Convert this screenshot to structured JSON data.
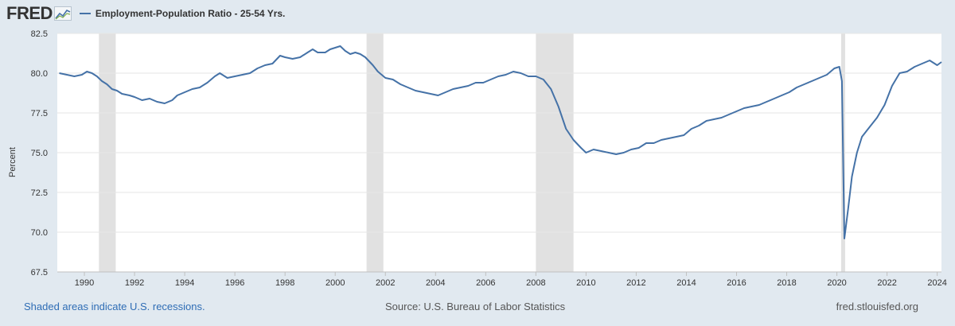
{
  "header": {
    "logo_text": "FRED",
    "logo_icon": "chart-line-icon",
    "legend_label": "Employment-Population Ratio - 25-54 Yrs.",
    "series_color": "#4572a7"
  },
  "footer": {
    "recession_note": "Shaded areas indicate U.S. recessions.",
    "source": "Source: U.S. Bureau of Labor Statistics",
    "site": "fred.stlouisfed.org"
  },
  "chart_data": {
    "type": "line",
    "title": "",
    "xlabel": "",
    "ylabel": "Percent",
    "xlim": [
      1988.92,
      2024.17
    ],
    "ylim": [
      67.5,
      82.5
    ],
    "yticks": [
      "67.5",
      "70.0",
      "72.5",
      "75.0",
      "77.5",
      "80.0",
      "82.5"
    ],
    "xticks": [
      "1990",
      "1992",
      "1994",
      "1996",
      "1998",
      "2000",
      "2002",
      "2004",
      "2006",
      "2008",
      "2010",
      "2012",
      "2014",
      "2016",
      "2018",
      "2020",
      "2022",
      "2024"
    ],
    "grid": true,
    "legend": "top-left",
    "recessions": [
      [
        1990.58,
        1991.25
      ],
      [
        2001.25,
        2001.92
      ],
      [
        2008.0,
        2009.5
      ],
      [
        2020.17,
        2020.33
      ]
    ],
    "series": [
      {
        "name": "Employment-Population Ratio - 25-54 Yrs.",
        "color": "#4572a7",
        "points": [
          [
            1989.0,
            80.0
          ],
          [
            1989.3,
            79.9
          ],
          [
            1989.6,
            79.8
          ],
          [
            1989.9,
            79.9
          ],
          [
            1990.1,
            80.1
          ],
          [
            1990.3,
            80.0
          ],
          [
            1990.5,
            79.8
          ],
          [
            1990.7,
            79.5
          ],
          [
            1990.9,
            79.3
          ],
          [
            1991.1,
            79.0
          ],
          [
            1991.3,
            78.9
          ],
          [
            1991.5,
            78.7
          ],
          [
            1991.8,
            78.6
          ],
          [
            1992.0,
            78.5
          ],
          [
            1992.3,
            78.3
          ],
          [
            1992.6,
            78.4
          ],
          [
            1992.9,
            78.2
          ],
          [
            1993.2,
            78.1
          ],
          [
            1993.5,
            78.3
          ],
          [
            1993.7,
            78.6
          ],
          [
            1994.0,
            78.8
          ],
          [
            1994.3,
            79.0
          ],
          [
            1994.6,
            79.1
          ],
          [
            1994.9,
            79.4
          ],
          [
            1995.2,
            79.8
          ],
          [
            1995.4,
            80.0
          ],
          [
            1995.7,
            79.7
          ],
          [
            1996.0,
            79.8
          ],
          [
            1996.3,
            79.9
          ],
          [
            1996.6,
            80.0
          ],
          [
            1996.9,
            80.3
          ],
          [
            1997.2,
            80.5
          ],
          [
            1997.5,
            80.6
          ],
          [
            1997.8,
            81.1
          ],
          [
            1998.0,
            81.0
          ],
          [
            1998.3,
            80.9
          ],
          [
            1998.6,
            81.0
          ],
          [
            1998.9,
            81.3
          ],
          [
            1999.1,
            81.5
          ],
          [
            1999.3,
            81.3
          ],
          [
            1999.6,
            81.3
          ],
          [
            1999.8,
            81.5
          ],
          [
            2000.0,
            81.6
          ],
          [
            2000.2,
            81.7
          ],
          [
            2000.4,
            81.4
          ],
          [
            2000.6,
            81.2
          ],
          [
            2000.8,
            81.3
          ],
          [
            2001.0,
            81.2
          ],
          [
            2001.2,
            81.0
          ],
          [
            2001.5,
            80.5
          ],
          [
            2001.7,
            80.1
          ],
          [
            2002.0,
            79.7
          ],
          [
            2002.3,
            79.6
          ],
          [
            2002.6,
            79.3
          ],
          [
            2002.9,
            79.1
          ],
          [
            2003.2,
            78.9
          ],
          [
            2003.5,
            78.8
          ],
          [
            2003.8,
            78.7
          ],
          [
            2004.1,
            78.6
          ],
          [
            2004.4,
            78.8
          ],
          [
            2004.7,
            79.0
          ],
          [
            2005.0,
            79.1
          ],
          [
            2005.3,
            79.2
          ],
          [
            2005.6,
            79.4
          ],
          [
            2005.9,
            79.4
          ],
          [
            2006.2,
            79.6
          ],
          [
            2006.5,
            79.8
          ],
          [
            2006.8,
            79.9
          ],
          [
            2007.1,
            80.1
          ],
          [
            2007.4,
            80.0
          ],
          [
            2007.7,
            79.8
          ],
          [
            2008.0,
            79.8
          ],
          [
            2008.3,
            79.6
          ],
          [
            2008.6,
            79.0
          ],
          [
            2008.9,
            77.9
          ],
          [
            2009.2,
            76.5
          ],
          [
            2009.5,
            75.8
          ],
          [
            2009.8,
            75.3
          ],
          [
            2010.0,
            75.0
          ],
          [
            2010.3,
            75.2
          ],
          [
            2010.6,
            75.1
          ],
          [
            2010.9,
            75.0
          ],
          [
            2011.2,
            74.9
          ],
          [
            2011.5,
            75.0
          ],
          [
            2011.8,
            75.2
          ],
          [
            2012.1,
            75.3
          ],
          [
            2012.4,
            75.6
          ],
          [
            2012.7,
            75.6
          ],
          [
            2013.0,
            75.8
          ],
          [
            2013.3,
            75.9
          ],
          [
            2013.6,
            76.0
          ],
          [
            2013.9,
            76.1
          ],
          [
            2014.2,
            76.5
          ],
          [
            2014.5,
            76.7
          ],
          [
            2014.8,
            77.0
          ],
          [
            2015.1,
            77.1
          ],
          [
            2015.4,
            77.2
          ],
          [
            2015.7,
            77.4
          ],
          [
            2016.0,
            77.6
          ],
          [
            2016.3,
            77.8
          ],
          [
            2016.6,
            77.9
          ],
          [
            2016.9,
            78.0
          ],
          [
            2017.2,
            78.2
          ],
          [
            2017.5,
            78.4
          ],
          [
            2017.8,
            78.6
          ],
          [
            2018.1,
            78.8
          ],
          [
            2018.4,
            79.1
          ],
          [
            2018.7,
            79.3
          ],
          [
            2019.0,
            79.5
          ],
          [
            2019.3,
            79.7
          ],
          [
            2019.6,
            79.9
          ],
          [
            2019.9,
            80.3
          ],
          [
            2020.1,
            80.4
          ],
          [
            2020.2,
            79.5
          ],
          [
            2020.3,
            69.6
          ],
          [
            2020.45,
            71.5
          ],
          [
            2020.6,
            73.5
          ],
          [
            2020.8,
            75.0
          ],
          [
            2021.0,
            76.0
          ],
          [
            2021.3,
            76.6
          ],
          [
            2021.6,
            77.2
          ],
          [
            2021.9,
            78.0
          ],
          [
            2022.2,
            79.2
          ],
          [
            2022.5,
            80.0
          ],
          [
            2022.8,
            80.1
          ],
          [
            2023.1,
            80.4
          ],
          [
            2023.4,
            80.6
          ],
          [
            2023.7,
            80.8
          ],
          [
            2024.0,
            80.5
          ],
          [
            2024.17,
            80.7
          ]
        ]
      }
    ]
  }
}
